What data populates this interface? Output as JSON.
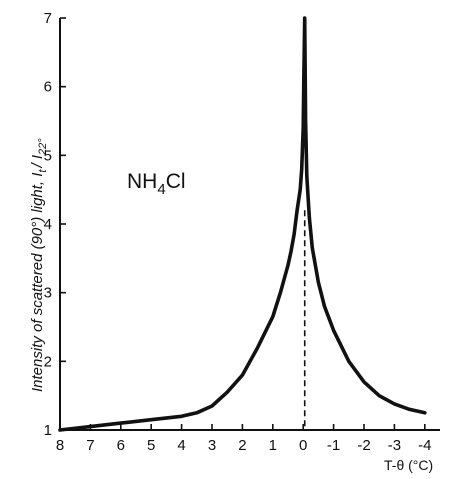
{
  "chart_data": {
    "type": "line",
    "title": "",
    "xlabel": "T-θ (°C)",
    "ylabel": "Intensity of scattered (90°) light, I",
    "ylabel_sub": "t",
    "ylabel_tail": "/ I",
    "ylabel_sub2": "22°",
    "annotation": {
      "main": "NH",
      "sub": "4",
      "tail": "Cl"
    },
    "xlim": [
      8,
      -4.5
    ],
    "ylim": [
      1,
      7
    ],
    "x_ticks": [
      8,
      7,
      6,
      5,
      4,
      3,
      2,
      1,
      0,
      -1,
      -2,
      -3,
      -4
    ],
    "x_tick_labels": [
      "8",
      "7",
      "6",
      "5",
      "4",
      "3",
      "2",
      "1",
      "0",
      "-1",
      "-2",
      "-3",
      "-4"
    ],
    "y_ticks": [
      1,
      2,
      3,
      4,
      5,
      6,
      7
    ],
    "y_tick_labels": [
      "1",
      "2",
      "3",
      "4",
      "5",
      "6",
      "7"
    ],
    "grid": false,
    "transition_x": -0.05,
    "series": [
      {
        "x": [
          8.0,
          7.0,
          6.0,
          5.0,
          4.0,
          3.5,
          3.0,
          2.5,
          2.0,
          1.5,
          1.0,
          0.75,
          0.5,
          0.4,
          0.3,
          0.2,
          0.1,
          0.05,
          0.0,
          -0.02,
          -0.05,
          -0.08,
          -0.12,
          -0.2,
          -0.3,
          -0.5,
          -0.7,
          -1.0,
          -1.5,
          -2.0,
          -2.5,
          -3.0,
          -3.5,
          -4.0
        ],
        "y": [
          1.0,
          1.05,
          1.1,
          1.15,
          1.2,
          1.25,
          1.35,
          1.55,
          1.8,
          2.2,
          2.65,
          3.0,
          3.4,
          3.6,
          3.85,
          4.2,
          4.5,
          4.8,
          5.4,
          6.1,
          7.0,
          5.5,
          4.7,
          4.1,
          3.65,
          3.15,
          2.8,
          2.45,
          2.0,
          1.7,
          1.5,
          1.38,
          1.3,
          1.25
        ]
      }
    ]
  }
}
